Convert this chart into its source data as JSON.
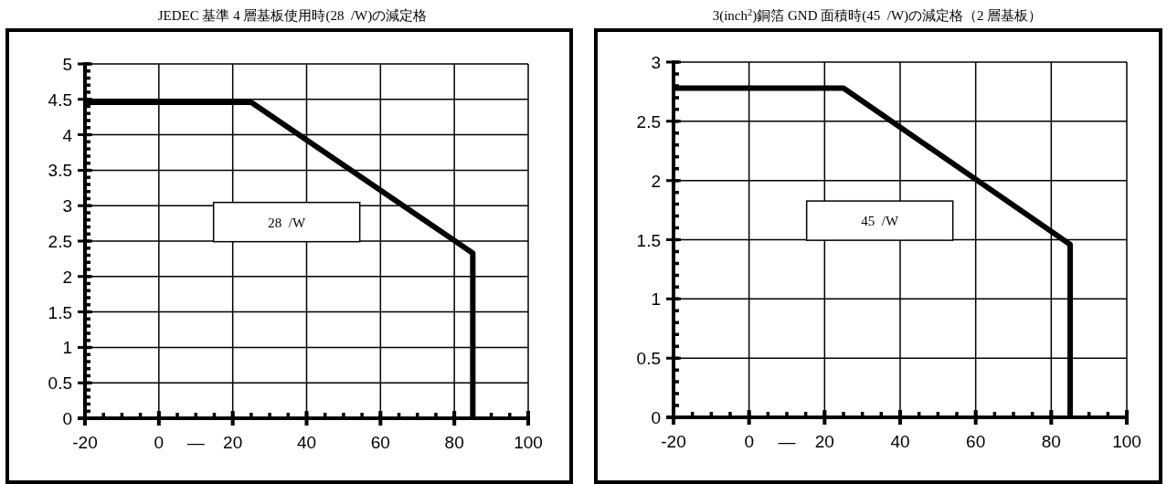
{
  "chart_data": [
    {
      "type": "line",
      "title": "JEDEC 基準 4 層基板使用時(28  /W)の減定格",
      "x": [
        -20,
        25,
        85,
        85
      ],
      "values": [
        4.46,
        4.46,
        2.33,
        0
      ],
      "color": "#000000",
      "xlim": [
        -20,
        100
      ],
      "xticks": [
        -20,
        0,
        {
          "value": 10,
          "label": "―"
        },
        20,
        40,
        60,
        80,
        100
      ],
      "ylim": [
        0,
        5
      ],
      "yticks": [
        0,
        0.5,
        1,
        1.5,
        2,
        2.5,
        3,
        3.5,
        4,
        4.5,
        5
      ],
      "grid": true,
      "annotations": [
        "28  /W"
      ]
    },
    {
      "type": "line",
      "title": "3(inch$^{2}$)銅箔 GND 面積時(45  /W)の減定格（2 層基板）",
      "x": [
        -20,
        25,
        85,
        85
      ],
      "values": [
        2.78,
        2.78,
        1.46,
        0
      ],
      "color": "#000000",
      "xlim": [
        -20,
        100
      ],
      "xticks": [
        -20,
        0,
        {
          "value": 10,
          "label": "―"
        },
        20,
        40,
        60,
        80,
        100
      ],
      "ylim": [
        0,
        3
      ],
      "yticks": [
        0,
        0.5,
        1,
        1.5,
        2,
        2.5,
        3
      ],
      "grid": true,
      "annotations": [
        "45  /W"
      ]
    }
  ]
}
